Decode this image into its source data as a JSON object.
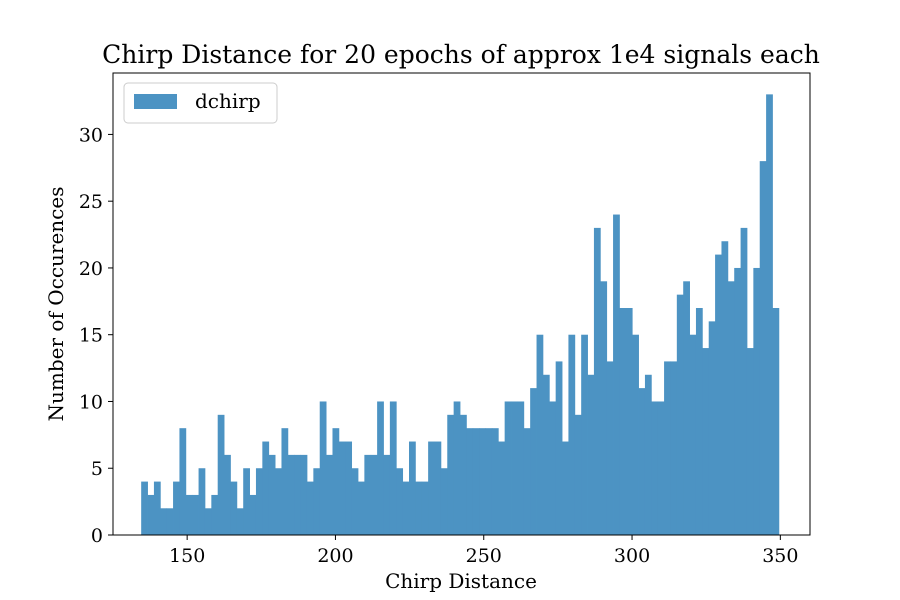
{
  "chart_data": {
    "type": "bar",
    "title": "Chirp Distance for 20 epochs of approx 1e4 signals each",
    "xlabel": "Chirp Distance",
    "ylabel": "Number of Occurences",
    "bar_color": "#4c93c3",
    "legend": {
      "placement": "top-left",
      "entries": [
        "dchirp"
      ]
    },
    "grid": false,
    "xlim": [
      125,
      360
    ],
    "ylim": [
      0,
      34.6
    ],
    "bin_start": 134.5,
    "bin_width": 2.15,
    "x_ticks": [
      150,
      200,
      250,
      300,
      350
    ],
    "y_ticks": [
      0,
      5,
      10,
      15,
      20,
      25,
      30
    ],
    "series": [
      {
        "name": "dchirp",
        "values": [
          4,
          3,
          4,
          2,
          2,
          4,
          8,
          3,
          3,
          5,
          2,
          3,
          9,
          6,
          4,
          2,
          5,
          3,
          5,
          7,
          6,
          5,
          8,
          6,
          6,
          6,
          4,
          5,
          10,
          6,
          8,
          7,
          7,
          5,
          4,
          6,
          6,
          10,
          6,
          10,
          5,
          4,
          7,
          4,
          4,
          7,
          7,
          5,
          9,
          10,
          9,
          8,
          8,
          8,
          8,
          8,
          7,
          10,
          10,
          10,
          8,
          11,
          15,
          12,
          10,
          13,
          7,
          15,
          9,
          15,
          12,
          23,
          19,
          13,
          24,
          17,
          17,
          15,
          11,
          12,
          10,
          10,
          13,
          13,
          18,
          19,
          15,
          17,
          14,
          16,
          21,
          22,
          19,
          20,
          23,
          14,
          20,
          28,
          33,
          17
        ]
      }
    ]
  }
}
